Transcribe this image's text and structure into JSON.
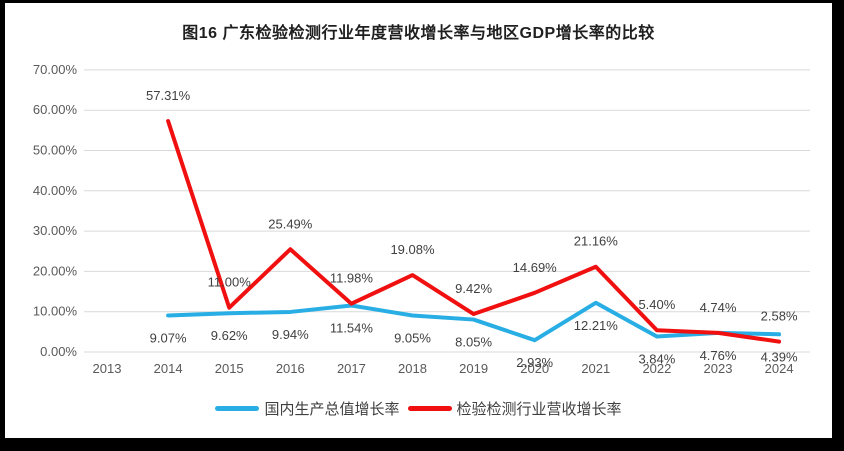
{
  "chart_data": {
    "type": "line",
    "title": "图16 广东检验检测行业年度营收增长率与地区GDP增长率的比较",
    "categories": [
      "2013",
      "2014",
      "2015",
      "2016",
      "2017",
      "2018",
      "2019",
      "2020",
      "2021",
      "2022",
      "2023",
      "2024"
    ],
    "xlabel": "",
    "ylabel": "",
    "ylim": [
      0,
      70
    ],
    "grid": true,
    "legend_position": "bottom",
    "y_ticks": [
      {
        "value": 0,
        "label": "0.00%"
      },
      {
        "value": 10,
        "label": "10.00%"
      },
      {
        "value": 20,
        "label": "20.00%"
      },
      {
        "value": 30,
        "label": "30.00%"
      },
      {
        "value": 40,
        "label": "40.00%"
      },
      {
        "value": 50,
        "label": "50.00%"
      },
      {
        "value": 60,
        "label": "60.00%"
      },
      {
        "value": 70,
        "label": "70.00%"
      }
    ],
    "series": [
      {
        "key": "gdp-growth",
        "name": "国内生产总值增长率",
        "color": "#28AEE4",
        "label_position": "below",
        "values": [
          null,
          9.07,
          9.62,
          9.94,
          11.54,
          9.05,
          8.05,
          2.93,
          12.21,
          3.84,
          4.76,
          4.39
        ],
        "point_labels": [
          "",
          "9.07%",
          "9.62%",
          "9.94%",
          "11.54%",
          "9.05%",
          "8.05%",
          "2.93%",
          "12.21%",
          "3.84%",
          "4.76%",
          "4.39%"
        ]
      },
      {
        "key": "industry-revenue-growth",
        "name": "检验检测行业营收增长率",
        "color": "#F01010",
        "label_position": "above",
        "values": [
          null,
          57.31,
          11.0,
          25.49,
          11.98,
          19.08,
          9.42,
          14.69,
          21.16,
          5.4,
          4.74,
          2.58
        ],
        "point_labels": [
          "",
          "57.31%",
          "11.00%",
          "25.49%",
          "11.98%",
          "19.08%",
          "9.42%",
          "14.69%",
          "21.16%",
          "5.40%",
          "4.74%",
          "2.58%"
        ]
      }
    ],
    "colors": {
      "gridline": "#D9D9D9",
      "tick_text": "#595959",
      "label_text": "#404040",
      "title_text": "#1F1F1F"
    }
  }
}
